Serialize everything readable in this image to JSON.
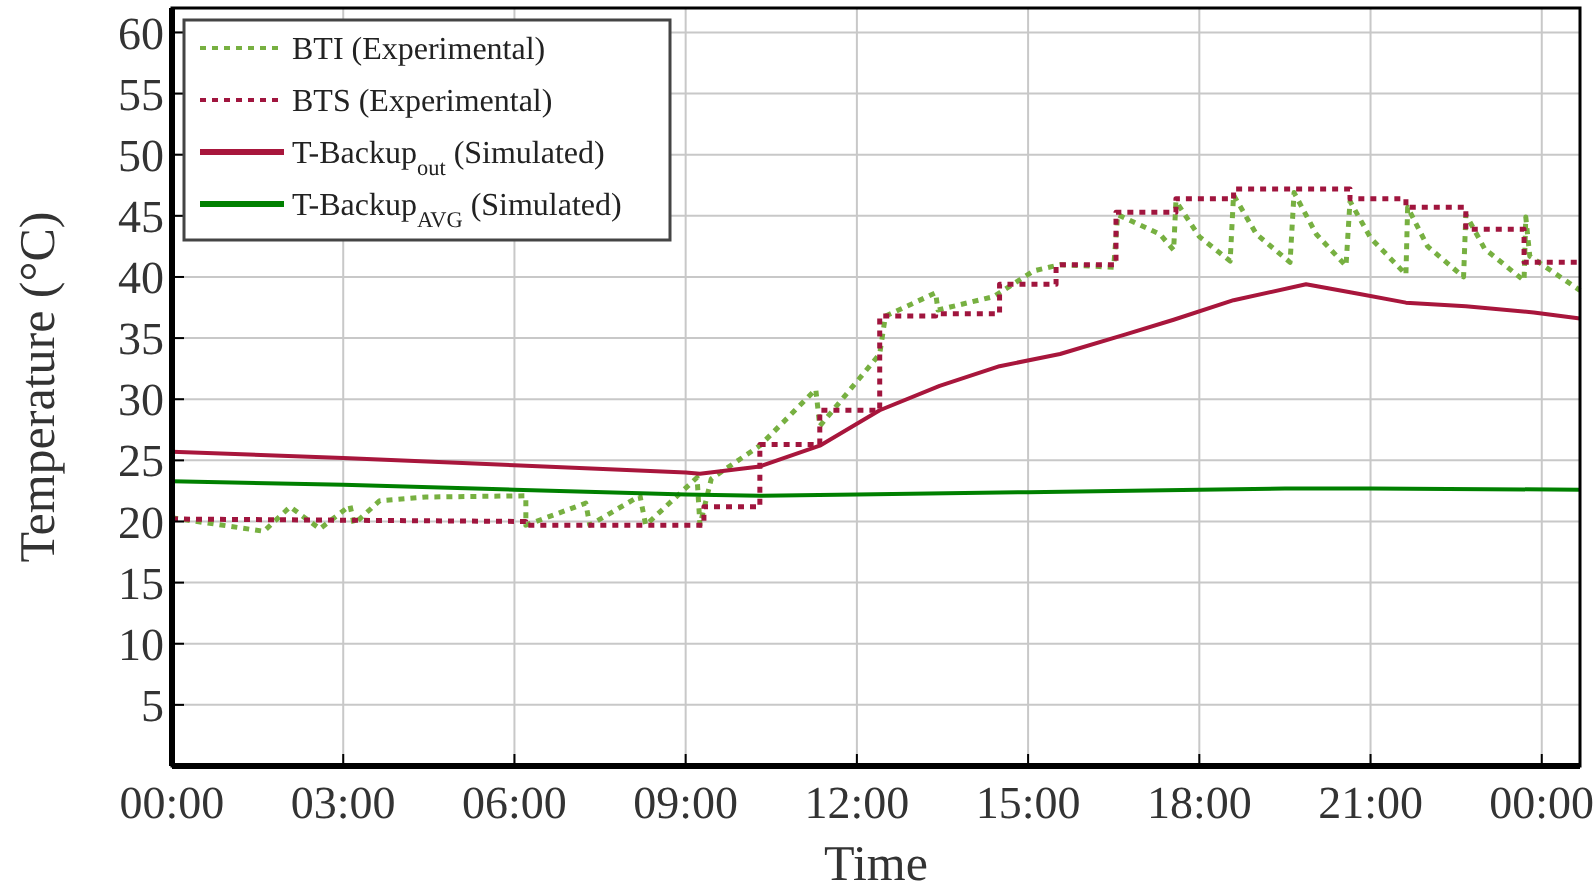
{
  "chart_data": {
    "type": "line",
    "xlabel": "Time",
    "ylabel": "Temperature (°C)",
    "xlim": [
      0,
      24.67
    ],
    "ylim": [
      0,
      62
    ],
    "xticks": [
      {
        "value": 0,
        "label": "00:00"
      },
      {
        "value": 3,
        "label": "03:00"
      },
      {
        "value": 6,
        "label": "06:00"
      },
      {
        "value": 9,
        "label": "09:00"
      },
      {
        "value": 12,
        "label": "12:00"
      },
      {
        "value": 15,
        "label": "15:00"
      },
      {
        "value": 18,
        "label": "18:00"
      },
      {
        "value": 21,
        "label": "21:00"
      },
      {
        "value": 24,
        "label": "00:00"
      }
    ],
    "yticks": [
      5,
      10,
      15,
      20,
      25,
      30,
      35,
      40,
      45,
      50,
      55,
      60
    ],
    "grid": true,
    "legend": "top left",
    "series": [
      {
        "name": "BTI (Experimental)",
        "color": "#77b041",
        "line_style": "dotted",
        "x": [
          0,
          1.61,
          2.07,
          2.59,
          3.12,
          3.19,
          3.64,
          4.45,
          6.2,
          6.2,
          7.25,
          7.32,
          8.2,
          8.3,
          9.2,
          9.25,
          9.45,
          10.3,
          11.28,
          11.35,
          12.4,
          12.5,
          13.38,
          13.42,
          14.4,
          15.1,
          15.56,
          16.5,
          16.57,
          17.31,
          17.55,
          17.59,
          18.0,
          18.54,
          18.6,
          19.0,
          19.59,
          19.66,
          20.05,
          20.57,
          20.64,
          21.0,
          21.62,
          21.65,
          22.0,
          22.63,
          22.67,
          23.0,
          23.69,
          23.72,
          23.79,
          24.67
        ],
        "values": [
          20.3,
          19.2,
          21.2,
          19.4,
          21.3,
          19.8,
          21.7,
          22.0,
          22.1,
          19.7,
          21.5,
          19.7,
          22.1,
          19.7,
          23.6,
          19.7,
          23.5,
          26.2,
          30.8,
          27.8,
          33.7,
          36.8,
          38.7,
          37.3,
          38.4,
          40.5,
          41.0,
          40.8,
          45.1,
          43.5,
          42.2,
          46.2,
          43.3,
          41.3,
          46.7,
          43.5,
          41.2,
          46.9,
          43.5,
          40.9,
          46.2,
          43.2,
          40.2,
          45.7,
          42.5,
          40.0,
          45.1,
          42.3,
          39.7,
          44.9,
          41.7,
          38.9
        ]
      },
      {
        "name": "BTS (Experimental)",
        "color": "#a0153e",
        "line_style": "dotted",
        "x": [
          0,
          6.2,
          6.2,
          9.32,
          9.32,
          10.3,
          10.3,
          11.35,
          11.35,
          12.4,
          12.4,
          13.38,
          13.38,
          14.5,
          14.5,
          15.49,
          15.49,
          16.54,
          16.54,
          17.59,
          17.59,
          18.6,
          18.6,
          20.64,
          20.64,
          21.62,
          21.62,
          22.67,
          22.67,
          23.69,
          23.69,
          24.67
        ],
        "values": [
          20.2,
          20.0,
          19.7,
          19.7,
          21.2,
          21.2,
          26.3,
          26.3,
          29.1,
          29.1,
          36.8,
          36.8,
          37.0,
          37.0,
          39.4,
          39.4,
          41.0,
          41.0,
          45.3,
          45.3,
          46.4,
          46.4,
          47.2,
          47.2,
          46.4,
          46.4,
          45.7,
          45.7,
          43.9,
          43.9,
          41.2,
          41.2
        ]
      },
      {
        "name": "T-Backup$_{out}$ (Simulated)",
        "color": "#a8163c",
        "line_style": "solid",
        "x": [
          0,
          3,
          6,
          9,
          9.25,
          10.3,
          11.35,
          12.4,
          13.45,
          14.5,
          15.56,
          16.71,
          17.55,
          18.6,
          19.87,
          20.81,
          21.62,
          22.67,
          23.86,
          24.67
        ],
        "values": [
          25.7,
          25.2,
          24.6,
          24.0,
          23.9,
          24.5,
          26.2,
          29.1,
          31.1,
          32.7,
          33.7,
          35.3,
          36.5,
          38.1,
          39.4,
          38.6,
          37.9,
          37.6,
          37.1,
          36.6
        ]
      },
      {
        "name": "T-Backup$_{AVG}$ (Simulated)",
        "color": "#008000",
        "line_style": "solid",
        "x": [
          0,
          3,
          6,
          9,
          10.3,
          12,
          15,
          18,
          19.5,
          21,
          24.67
        ],
        "values": [
          23.3,
          23.0,
          22.6,
          22.2,
          22.1,
          22.2,
          22.4,
          22.6,
          22.7,
          22.7,
          22.6
        ]
      }
    ]
  }
}
